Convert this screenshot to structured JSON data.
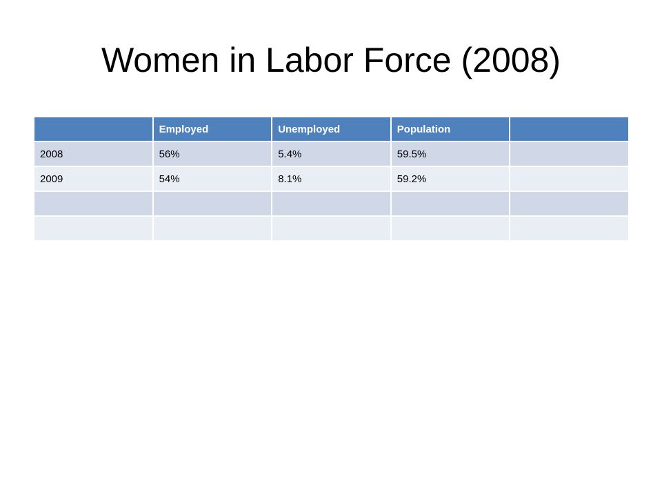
{
  "title": "Women in Labor Force (2008)",
  "table": {
    "header": [
      "Employed",
      "Unemployed",
      "Population"
    ],
    "rows": [
      [
        "2008",
        "56%",
        "5.4%",
        "59.5%"
      ],
      [
        "2009",
        "54%",
        "8.1%",
        "59.2%"
      ]
    ]
  }
}
